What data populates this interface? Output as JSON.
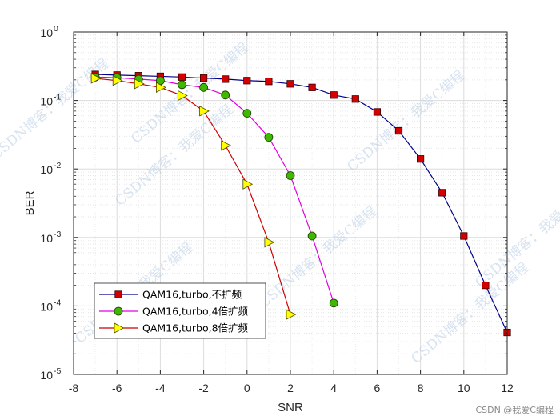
{
  "chart_data": {
    "type": "line",
    "xlabel": "SNR",
    "ylabel": "BER",
    "xlim": [
      -8,
      12
    ],
    "ylim": [
      1e-05,
      1
    ],
    "y_scale": "log",
    "grid": "on (major and minor)",
    "legend_position": "bottom-left",
    "x_ticks": [
      "-8",
      "-6",
      "-4",
      "-2",
      "0",
      "2",
      "4",
      "6",
      "8",
      "10",
      "12"
    ],
    "y_ticks": [
      {
        "base": "10",
        "exp": "0"
      },
      {
        "base": "10",
        "exp": "-1"
      },
      {
        "base": "10",
        "exp": "-2"
      },
      {
        "base": "10",
        "exp": "-3"
      },
      {
        "base": "10",
        "exp": "-4"
      },
      {
        "base": "10",
        "exp": "-5"
      }
    ],
    "series": [
      {
        "name": "QAM16,turbo,不扩频",
        "color": "#00008b",
        "marker": "square",
        "marker_color": "#d40000",
        "x": [
          -7,
          -6,
          -5,
          -4,
          -3,
          -2,
          -1,
          0,
          1,
          2,
          3,
          4,
          5,
          6,
          7,
          8,
          9,
          10,
          11,
          12
        ],
        "y": [
          0.24,
          0.235,
          0.23,
          0.225,
          0.22,
          0.212,
          0.205,
          0.195,
          0.19,
          0.175,
          0.155,
          0.12,
          0.105,
          0.068,
          0.036,
          0.014,
          0.0045,
          0.00105,
          0.0002,
          4.1e-05
        ]
      },
      {
        "name": "QAM16,turbo,4倍扩频",
        "color": "#e000e0",
        "marker": "circle",
        "marker_color": "#3fb800",
        "x": [
          -7,
          -6,
          -5,
          -4,
          -3,
          -2,
          -1,
          0,
          1,
          2,
          3,
          4
        ],
        "y": [
          0.22,
          0.215,
          0.205,
          0.195,
          0.17,
          0.155,
          0.12,
          0.065,
          0.029,
          0.008,
          0.00105,
          0.00011
        ]
      },
      {
        "name": "QAM16,turbo,8倍扩频",
        "color": "#cc0000",
        "marker": "triangle-right",
        "marker_color": "#ffff00",
        "x": [
          -7,
          -6,
          -5,
          -4,
          -3,
          -2,
          -1,
          0,
          1,
          2
        ],
        "y": [
          0.21,
          0.195,
          0.175,
          0.155,
          0.118,
          0.07,
          0.022,
          0.006,
          0.00085,
          7.5e-05
        ]
      }
    ]
  },
  "watermark": "CSDN博客：我爱C编程",
  "footer": "CSDN @我爱C编程"
}
